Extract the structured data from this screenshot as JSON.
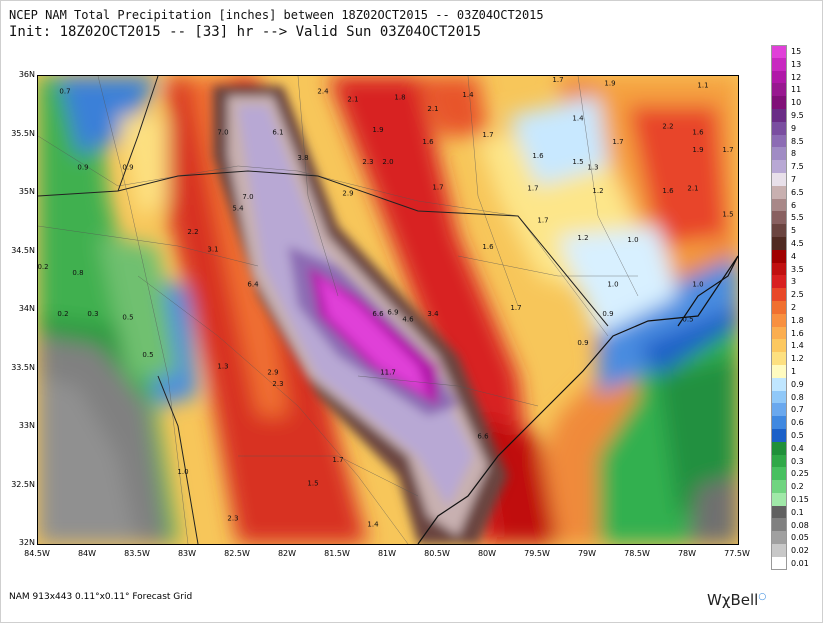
{
  "title_line1": "NCEP NAM Total Precipitation [inches] between 18Z02OCT2015 -- 03Z04OCT2015",
  "title_line2": "Init: 18Z02OCT2015 -- [33] hr --> Valid Sun 03Z04OCT2015",
  "footer": "NAM 913x443 0.11°x0.11° Forecast Grid",
  "brand": "WχBell",
  "lat_labels": [
    "36N",
    "35.5N",
    "35N",
    "34.5N",
    "34N",
    "33.5N",
    "33N",
    "32.5N",
    "32N"
  ],
  "lon_labels": [
    "84.5W",
    "84W",
    "83.5W",
    "83W",
    "82.5W",
    "82W",
    "81.5W",
    "81W",
    "80.5W",
    "80W",
    "79.5W",
    "79W",
    "78.5W",
    "78W",
    "77.5W"
  ],
  "colorbar": {
    "levels": [
      "15",
      "13",
      "12",
      "11",
      "10",
      "9.5",
      "9",
      "8.5",
      "8",
      "7.5",
      "7",
      "6.5",
      "6",
      "5.5",
      "5",
      "4.5",
      "4",
      "3.5",
      "3",
      "2.5",
      "2",
      "1.8",
      "1.6",
      "1.4",
      "1.2",
      "1",
      "0.9",
      "0.8",
      "0.7",
      "0.6",
      "0.5",
      "0.4",
      "0.3",
      "0.25",
      "0.2",
      "0.15",
      "0.1",
      "0.08",
      "0.05",
      "0.02",
      "0.01"
    ],
    "colors": [
      "#e040d8",
      "#c828c0",
      "#b018a8",
      "#981890",
      "#801078",
      "#6a2c86",
      "#7a4ea0",
      "#8c6cb4",
      "#a08cc4",
      "#b8a8d4",
      "#e8e0ea",
      "#c8b0b0",
      "#a88888",
      "#886060",
      "#6a4440",
      "#502a22",
      "#a00000",
      "#c01010",
      "#d82020",
      "#e84828",
      "#f07030",
      "#f89040",
      "#fbae50",
      "#fcc860",
      "#fde080",
      "#fffbc0",
      "#c0e6ff",
      "#90c8f8",
      "#6aa8ee",
      "#4088e0",
      "#1c60c8",
      "#20903a",
      "#30a848",
      "#48c060",
      "#70d480",
      "#a0e8a8",
      "#606060",
      "#808080",
      "#a0a0a0",
      "#c8c8c8",
      "#ffffff"
    ]
  },
  "map_labels": [
    {
      "text": "0.7",
      "lon": -84.23,
      "lat": 35.85
    },
    {
      "text": "0.9",
      "lon": -84.05,
      "lat": 35.2
    },
    {
      "text": "0.9",
      "lon": -83.6,
      "lat": 35.2
    },
    {
      "text": "0.2",
      "lon": -84.45,
      "lat": 34.35
    },
    {
      "text": "0.8",
      "lon": -84.1,
      "lat": 34.3
    },
    {
      "text": "0.2",
      "lon": -84.25,
      "lat": 33.95
    },
    {
      "text": "0.3",
      "lon": -83.95,
      "lat": 33.95
    },
    {
      "text": "0.5",
      "lon": -83.6,
      "lat": 33.92
    },
    {
      "text": "0.5",
      "lon": -83.4,
      "lat": 33.6
    },
    {
      "text": "2.2",
      "lon": -82.95,
      "lat": 34.65
    },
    {
      "text": "3.1",
      "lon": -82.75,
      "lat": 34.5
    },
    {
      "text": "5.4",
      "lon": -82.5,
      "lat": 34.85
    },
    {
      "text": "7.0",
      "lon": -82.4,
      "lat": 34.95
    },
    {
      "text": "7.0",
      "lon": -82.65,
      "lat": 35.5
    },
    {
      "text": "6.1",
      "lon": -82.1,
      "lat": 35.5
    },
    {
      "text": "3.8",
      "lon": -81.85,
      "lat": 35.28
    },
    {
      "text": "6.4",
      "lon": -82.35,
      "lat": 34.2
    },
    {
      "text": "6.6",
      "lon": -81.1,
      "lat": 33.95
    },
    {
      "text": "6.9",
      "lon": -80.95,
      "lat": 33.96
    },
    {
      "text": "4.6",
      "lon": -80.8,
      "lat": 33.9
    },
    {
      "text": "3.4",
      "lon": -80.55,
      "lat": 33.95
    },
    {
      "text": "11.7",
      "lon": -81.0,
      "lat": 33.45
    },
    {
      "text": "6.6",
      "lon": -80.05,
      "lat": 32.9
    },
    {
      "text": "1.3",
      "lon": -82.65,
      "lat": 33.5
    },
    {
      "text": "2.9",
      "lon": -82.15,
      "lat": 33.45
    },
    {
      "text": "2.3",
      "lon": -82.1,
      "lat": 33.35
    },
    {
      "text": "1.0",
      "lon": -83.05,
      "lat": 32.6
    },
    {
      "text": "1.7",
      "lon": -81.5,
      "lat": 32.7
    },
    {
      "text": "1.5",
      "lon": -81.75,
      "lat": 32.5
    },
    {
      "text": "2.3",
      "lon": -82.55,
      "lat": 32.2
    },
    {
      "text": "1.4",
      "lon": -81.15,
      "lat": 32.15
    },
    {
      "text": "2.4",
      "lon": -81.65,
      "lat": 35.85
    },
    {
      "text": "2.1",
      "lon": -81.35,
      "lat": 35.78
    },
    {
      "text": "1.8",
      "lon": -80.88,
      "lat": 35.8
    },
    {
      "text": "2.1",
      "lon": -80.55,
      "lat": 35.7
    },
    {
      "text": "1.4",
      "lon": -80.2,
      "lat": 35.82
    },
    {
      "text": "1.9",
      "lon": -81.1,
      "lat": 35.52
    },
    {
      "text": "1.6",
      "lon": -80.6,
      "lat": 35.42
    },
    {
      "text": "1.7",
      "lon": -80.0,
      "lat": 35.48
    },
    {
      "text": "2.3",
      "lon": -81.2,
      "lat": 35.25
    },
    {
      "text": "2.0",
      "lon": -81.0,
      "lat": 35.25
    },
    {
      "text": "1.7",
      "lon": -80.5,
      "lat": 35.03
    },
    {
      "text": "2.9",
      "lon": -81.4,
      "lat": 34.98
    },
    {
      "text": "1.6",
      "lon": -80.0,
      "lat": 34.52
    },
    {
      "text": "1.7",
      "lon": -79.72,
      "lat": 34.0
    },
    {
      "text": "1.6",
      "lon": -79.5,
      "lat": 35.3
    },
    {
      "text": "1.7",
      "lon": -79.55,
      "lat": 35.02
    },
    {
      "text": "1.7",
      "lon": -79.45,
      "lat": 34.75
    },
    {
      "text": "1.2",
      "lon": -79.05,
      "lat": 34.6
    },
    {
      "text": "1.0",
      "lon": -78.55,
      "lat": 34.58
    },
    {
      "text": "1.0",
      "lon": -78.75,
      "lat": 34.2
    },
    {
      "text": "1.5",
      "lon": -79.1,
      "lat": 35.25
    },
    {
      "text": "1.3",
      "lon": -78.95,
      "lat": 35.2
    },
    {
      "text": "1.2",
      "lon": -78.9,
      "lat": 35.0
    },
    {
      "text": "1.7",
      "lon": -79.3,
      "lat": 35.95
    },
    {
      "text": "1.9",
      "lon": -78.78,
      "lat": 35.92
    },
    {
      "text": "1.4",
      "lon": -79.1,
      "lat": 35.62
    },
    {
      "text": "1.7",
      "lon": -78.7,
      "lat": 35.42
    },
    {
      "text": "2.2",
      "lon": -78.2,
      "lat": 35.55
    },
    {
      "text": "1.6",
      "lon": -77.9,
      "lat": 35.5
    },
    {
      "text": "1.9",
      "lon": -77.9,
      "lat": 35.35
    },
    {
      "text": "1.7",
      "lon": -77.6,
      "lat": 35.35
    },
    {
      "text": "1.6",
      "lon": -78.2,
      "lat": 35.0
    },
    {
      "text": "2.1",
      "lon": -77.95,
      "lat": 35.02
    },
    {
      "text": "1.5",
      "lon": -77.6,
      "lat": 34.8
    },
    {
      "text": "1.1",
      "lon": -77.85,
      "lat": 35.9
    },
    {
      "text": "1.0",
      "lon": -77.9,
      "lat": 34.2
    },
    {
      "text": "0.9",
      "lon": -78.8,
      "lat": 33.95
    },
    {
      "text": "0.9",
      "lon": -79.05,
      "lat": 33.7
    },
    {
      "text": "0.5",
      "lon": -78.0,
      "lat": 33.9
    }
  ]
}
